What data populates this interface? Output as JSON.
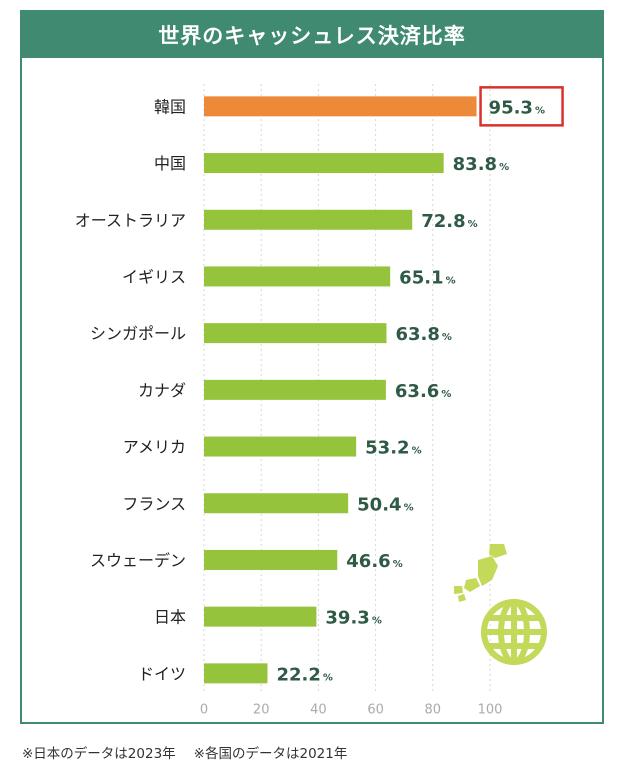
{
  "title": "世界のキャッシュレス決済比率",
  "footnotes": [
    "※日本のデータは2023年",
    "※各国のデータは2021年"
  ],
  "colors": {
    "frame": "#3f8a70",
    "bar": "#95c43c",
    "highlight_bar": "#ec8a3a",
    "highlight_box": "#d9322b",
    "value_text": "#2f5a45",
    "grid": "#d6d6d6",
    "icon": "#c3d95a"
  },
  "icons": [
    "japan-map-icon",
    "globe-icon"
  ],
  "chart_data": {
    "type": "bar",
    "orientation": "horizontal",
    "title": "世界のキャッシュレス決済比率",
    "categories": [
      "韓国",
      "中国",
      "オーストラリア",
      "イギリス",
      "シンガポール",
      "カナダ",
      "アメリカ",
      "フランス",
      "スウェーデン",
      "日本",
      "ドイツ"
    ],
    "values": [
      95.3,
      83.8,
      72.8,
      65.1,
      63.8,
      63.6,
      53.2,
      50.4,
      46.6,
      39.3,
      22.2
    ],
    "value_labels": [
      "95.3",
      "83.8",
      "72.8",
      "65.1",
      "63.8",
      "63.6",
      "53.2",
      "50.4",
      "46.6",
      "39.3",
      "22.2"
    ],
    "unit": "%",
    "highlight": "韓国",
    "xlim": [
      0,
      100
    ],
    "xticks": [
      0,
      20,
      40,
      60,
      80,
      100
    ],
    "grid": true,
    "xlabel": "",
    "ylabel": ""
  }
}
